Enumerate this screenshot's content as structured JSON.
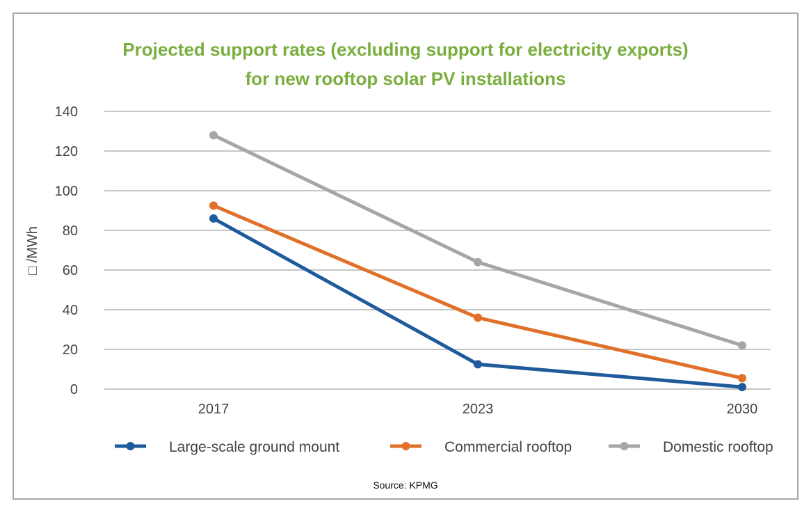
{
  "chart_data": {
    "type": "line",
    "title_lines": [
      "Projected support rates (excluding support for electricity exports)",
      "for new rooftop solar PV installations"
    ],
    "xlabel": "",
    "ylabel": "□ /MWh",
    "categories": [
      "2017",
      "2023",
      "2030"
    ],
    "ylim": [
      0,
      140
    ],
    "yticks": [
      0,
      20,
      40,
      60,
      80,
      100,
      120,
      140
    ],
    "grid": "horizontal",
    "legend_position": "bottom",
    "series": [
      {
        "name": "Large-scale ground mount",
        "values": [
          86,
          12.5,
          1
        ],
        "color": "#1f5b9c"
      },
      {
        "name": "Commercial rooftop",
        "values": [
          92.5,
          36,
          5.5
        ],
        "color": "#e0702a"
      },
      {
        "name": "Domestic rooftop",
        "values": [
          128,
          64,
          22
        ],
        "color": "#a6a6a6"
      }
    ],
    "source": "Source: KPMG"
  }
}
